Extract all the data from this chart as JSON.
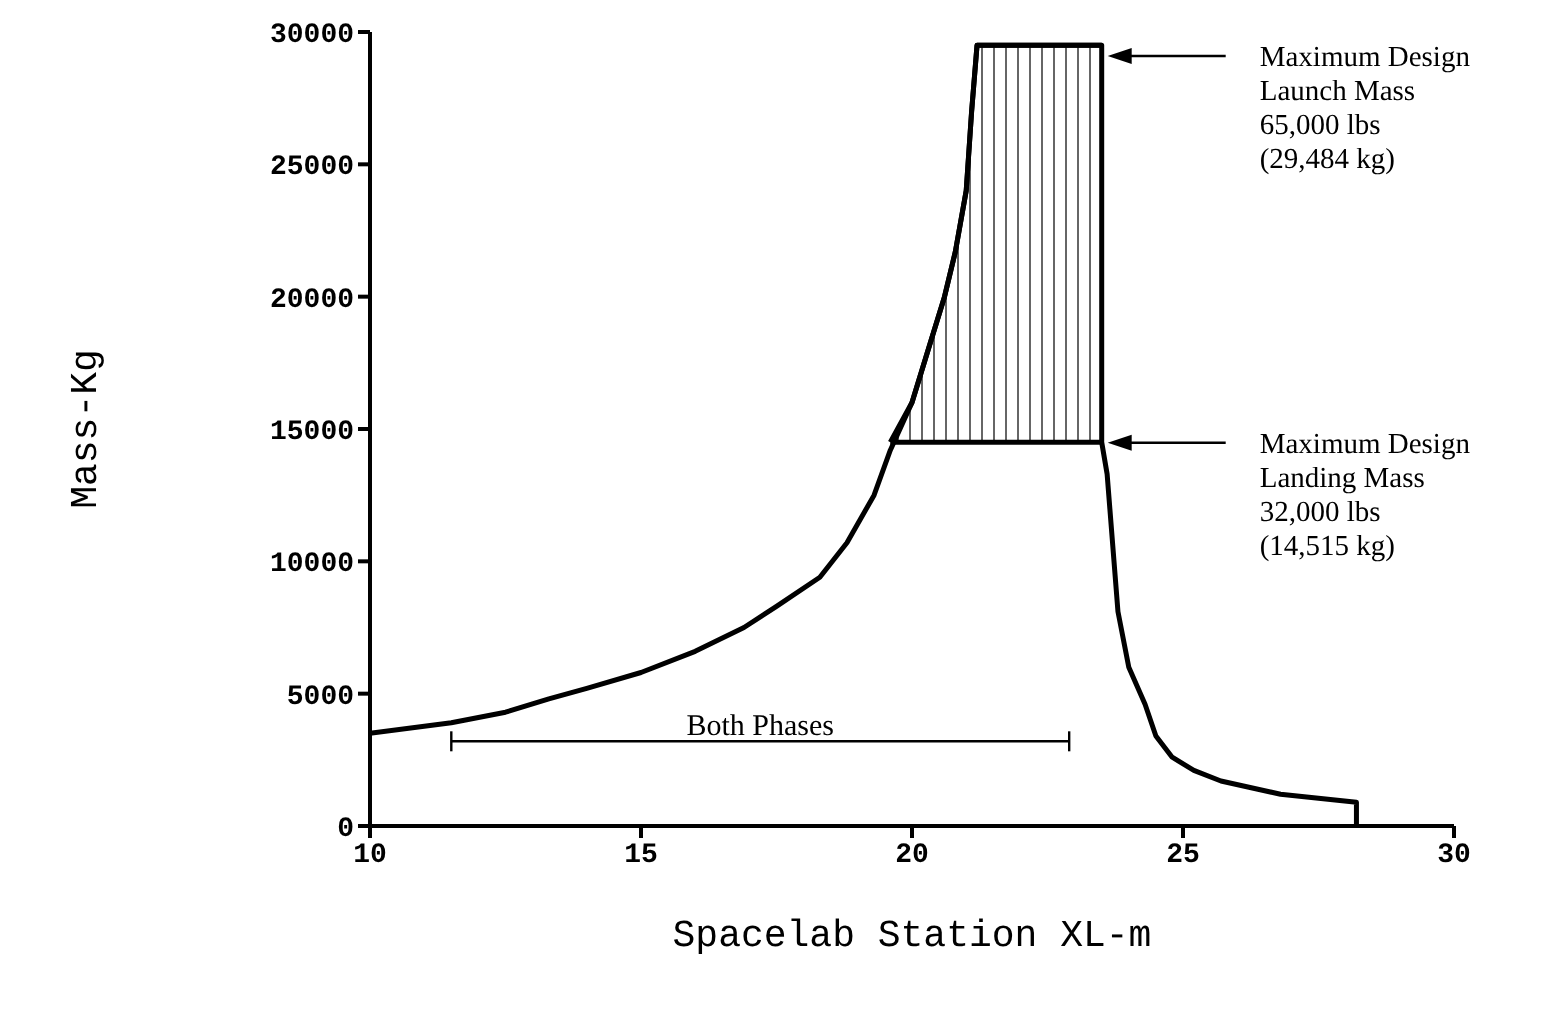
{
  "chart_data": {
    "type": "line",
    "xlabel": "Spacelab Station XL-m",
    "ylabel": "Mass-Kg",
    "xlim": [
      10,
      30
    ],
    "xticks": [
      10,
      15,
      20,
      25,
      30
    ],
    "ylim": [
      0,
      30000
    ],
    "yticks": [
      0,
      5000,
      10000,
      15000,
      20000,
      25000,
      30000
    ],
    "marker": "none",
    "series": [
      {
        "color": "#000000",
        "x": [
          19.6,
          20.0,
          20.3,
          20.6,
          20.8,
          21.0,
          21.1,
          21.2,
          23.5
        ],
        "values": [
          14500,
          16000,
          18000,
          20000,
          21700,
          24000,
          27000,
          29500,
          29500
        ],
        "lower": [
          14500,
          14500,
          14500,
          14500,
          14500,
          14500,
          14500,
          14500,
          14500
        ],
        "upper": [
          14500,
          16000,
          18000,
          20000,
          21700,
          24000,
          27000,
          29500,
          29500
        ]
      },
      {
        "color": "#000000",
        "x": [
          10,
          11.5,
          12.5,
          13.3,
          14,
          15,
          16,
          16.9,
          17.5,
          18.3,
          18.8,
          19.3,
          19.6,
          20.0,
          20.3,
          20.6,
          20.8,
          21.0,
          21.1,
          21.2,
          23.5,
          23.5,
          23.6,
          23.8,
          24.0,
          24.3,
          24.5,
          24.8,
          25.2,
          25.7,
          26.8,
          28.2,
          28.2
        ],
        "values": [
          3500,
          3900,
          4300,
          4800,
          5200,
          5800,
          6600,
          7500,
          8300,
          9400,
          10700,
          12500,
          14200,
          16000,
          18000,
          20000,
          21700,
          24000,
          27000,
          29500,
          29500,
          14500,
          13300,
          8100,
          6000,
          4600,
          3400,
          2600,
          2100,
          1700,
          1200,
          900,
          0
        ]
      },
      {
        "color": "#000000",
        "x": [
          19.6,
          23.5
        ],
        "values": [
          14500,
          14500
        ]
      },
      {
        "name": "Both Phases",
        "color": "#000000",
        "x": [
          11.5,
          22.9
        ],
        "values": [
          3200,
          3200
        ]
      }
    ],
    "annotations": [
      "Maximum Design\nLaunch Mass\n65,000 lbs\n(29,484 kg)",
      "Maximum Design\nLanding Mass\n32,000 lbs\n(14,515 kg)"
    ]
  }
}
